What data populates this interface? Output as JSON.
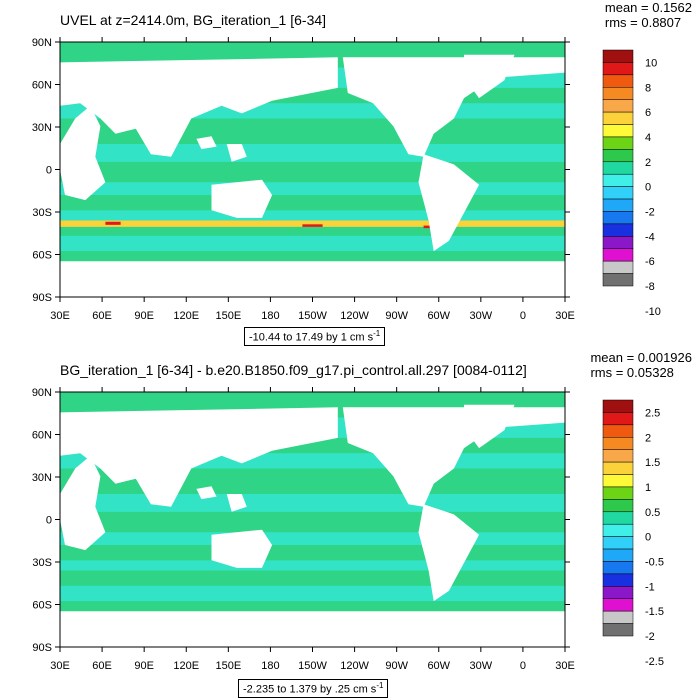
{
  "panels": [
    {
      "title": "UVEL at z=2414.0m, BG_iteration_1 [6-34]",
      "mean": "mean = 0.1562",
      "rms": "rms = 0.8807",
      "range_text": "-10.44 to 17.49 by 1 cm s",
      "range_exp": "-1",
      "colorbar_labels": [
        "10",
        "8",
        "6",
        "4",
        "2",
        "0",
        "-2",
        "-4",
        "-6",
        "-8",
        "-10"
      ]
    },
    {
      "title": "BG_iteration_1 [6-34] - b.e20.B1850.f09_g17.pi_control.all.297 [0084-0112]",
      "mean": "mean = 0.001926",
      "rms": "rms = 0.05328",
      "range_text": "-2.235 to 1.379 by .25 cm s",
      "range_exp": "-1",
      "colorbar_labels": [
        "2.5",
        "2",
        "1.5",
        "1",
        "0.5",
        "0",
        "-0.5",
        "-1",
        "-1.5",
        "-2",
        "-2.5"
      ]
    }
  ],
  "axes": {
    "lat_labels": [
      "90N",
      "60N",
      "30N",
      "0",
      "30S",
      "60S",
      "90S"
    ],
    "lon_labels": [
      "30E",
      "60E",
      "90E",
      "120E",
      "150E",
      "180",
      "150W",
      "120W",
      "90W",
      "60W",
      "30W",
      "0",
      "30E"
    ]
  },
  "colorbar_colors": [
    "#a01010",
    "#e01818",
    "#f05a10",
    "#f68a22",
    "#f8a848",
    "#fcd23a",
    "#fffa38",
    "#6cd414",
    "#2ec84c",
    "#20d8a0",
    "#40f0e8",
    "#30d0f8",
    "#20a8f8",
    "#1878f0",
    "#1830e0",
    "#8a18c8",
    "#e010d0",
    "#c8c8c8",
    "#707070"
  ],
  "colors": {
    "ocean_main": "#2fd487",
    "ocean_alt": "#32e6d0",
    "land": "#ffffff"
  }
}
